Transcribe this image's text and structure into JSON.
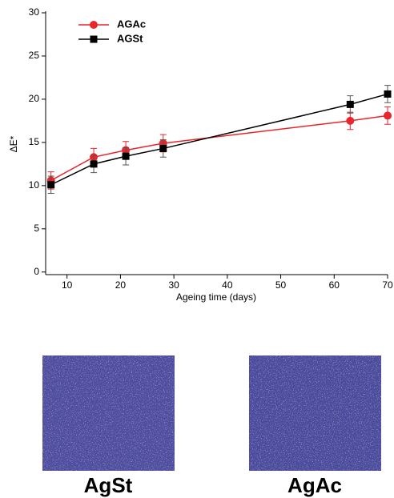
{
  "chart_data": {
    "type": "line",
    "x_label": "Ageing time (days)",
    "y_label": "ΔE*",
    "x": [
      7,
      15,
      21,
      28,
      63,
      70
    ],
    "series": [
      {
        "name": "AGAc",
        "color": "#e8262b",
        "marker": "circle",
        "values": [
          10.6,
          13.3,
          14.1,
          14.9,
          17.5,
          18.1
        ],
        "errors": [
          1.0,
          1.0,
          1.0,
          1.0,
          1.0,
          1.0
        ]
      },
      {
        "name": "AGSt",
        "color": "#000000",
        "marker": "square",
        "values": [
          10.1,
          12.5,
          13.4,
          14.3,
          19.4,
          20.6
        ],
        "errors": [
          1.0,
          1.0,
          1.0,
          1.0,
          1.0,
          1.0
        ]
      }
    ],
    "xlim": [
      6,
      70
    ],
    "ylim": [
      -0.3,
      30
    ],
    "xticks": [
      10,
      20,
      30,
      40,
      50,
      60,
      70
    ],
    "yticks": [
      0,
      5,
      10,
      15,
      20,
      25,
      30
    ],
    "legend": "upper-left"
  },
  "photo_labels": [
    "AgSt",
    "AgAc"
  ]
}
